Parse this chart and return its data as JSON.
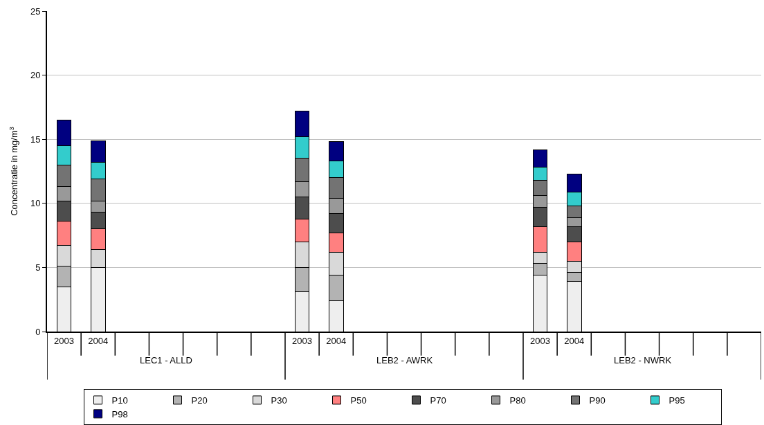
{
  "chart_data": {
    "type": "bar",
    "stacked": true,
    "categories": [
      "2003",
      "2004",
      null,
      null,
      null,
      null,
      null,
      "2003",
      "2004",
      null,
      null,
      null,
      null,
      null,
      "2003",
      "2004",
      null,
      null,
      null,
      null,
      null
    ],
    "ylabel": "Concentratie in mg/m$^{3}$",
    "annotations": [
      "LEC1 - ALLD",
      "LEB2 - AWRK",
      "LEB2 - NWRK"
    ],
    "ylim": [
      0,
      25
    ],
    "yticks": [
      0,
      5,
      10,
      15,
      20,
      25
    ],
    "grid": "y",
    "legend": "bottom",
    "series": [
      {
        "name": "P10",
        "color": "#eeeeee",
        "values": [
          3.5,
          5.0,
          null,
          null,
          null,
          null,
          null,
          3.1,
          2.4,
          null,
          null,
          null,
          null,
          null,
          4.4,
          3.9,
          null,
          null,
          null,
          null,
          null
        ]
      },
      {
        "name": "P20",
        "color": "#b3b3b3",
        "values": [
          1.6,
          0,
          null,
          null,
          null,
          null,
          null,
          1.9,
          2.0,
          null,
          null,
          null,
          null,
          null,
          0.9,
          0.7,
          null,
          null,
          null,
          null,
          null
        ]
      },
      {
        "name": "P30",
        "color": "#d9d9d9",
        "values": [
          1.6,
          1.4,
          null,
          null,
          null,
          null,
          null,
          2.0,
          1.8,
          null,
          null,
          null,
          null,
          null,
          0.9,
          0.9,
          null,
          null,
          null,
          null,
          null
        ]
      },
      {
        "name": "P50",
        "color": "#ff8080",
        "values": [
          1.9,
          1.6,
          null,
          null,
          null,
          null,
          null,
          1.8,
          1.5,
          null,
          null,
          null,
          null,
          null,
          2.0,
          1.5,
          null,
          null,
          null,
          null,
          null
        ]
      },
      {
        "name": "P70",
        "color": "#4d4d4d",
        "values": [
          1.6,
          1.3,
          null,
          null,
          null,
          null,
          null,
          1.7,
          1.5,
          null,
          null,
          null,
          null,
          null,
          1.5,
          1.2,
          null,
          null,
          null,
          null,
          null
        ]
      },
      {
        "name": "P80",
        "color": "#999999",
        "values": [
          1.1,
          0.9,
          null,
          null,
          null,
          null,
          null,
          1.2,
          1.2,
          null,
          null,
          null,
          null,
          null,
          0.9,
          0.7,
          null,
          null,
          null,
          null,
          null
        ]
      },
      {
        "name": "P90",
        "color": "#737373",
        "values": [
          1.7,
          1.7,
          null,
          null,
          null,
          null,
          null,
          1.8,
          1.6,
          null,
          null,
          null,
          null,
          null,
          1.2,
          0.9,
          null,
          null,
          null,
          null,
          null
        ]
      },
      {
        "name": "P95",
        "color": "#33cccc",
        "values": [
          1.5,
          1.3,
          null,
          null,
          null,
          null,
          null,
          1.7,
          1.3,
          null,
          null,
          null,
          null,
          null,
          1.0,
          1.1,
          null,
          null,
          null,
          null,
          null
        ]
      },
      {
        "name": "P98",
        "color": "#000080",
        "values": [
          2.0,
          1.7,
          null,
          null,
          null,
          null,
          null,
          2.0,
          1.5,
          null,
          null,
          null,
          null,
          null,
          1.4,
          1.4,
          null,
          null,
          null,
          null,
          null
        ]
      }
    ]
  }
}
